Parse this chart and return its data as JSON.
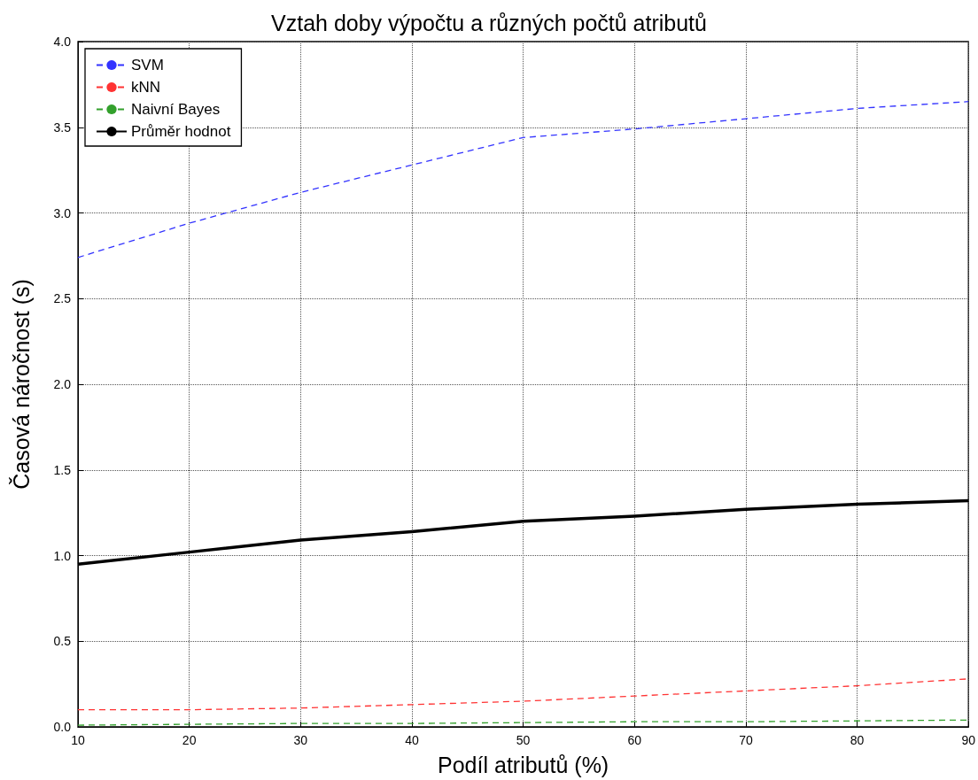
{
  "chart_data": {
    "type": "line",
    "title": "Vztah doby výpočtu a různých počtů atributů",
    "xlabel": "Podíl atributů (%)",
    "ylabel": "Časová náročnost (s)",
    "x": [
      10,
      20,
      30,
      40,
      50,
      60,
      70,
      80,
      90
    ],
    "series": [
      {
        "name": "SVM",
        "color": "#3333ff",
        "line_style": "dashed",
        "values": [
          2.74,
          2.94,
          3.12,
          3.28,
          3.44,
          3.49,
          3.55,
          3.61,
          3.65
        ]
      },
      {
        "name": "kNN",
        "color": "#ff3333",
        "line_style": "dashed",
        "values": [
          0.1,
          0.1,
          0.11,
          0.13,
          0.15,
          0.18,
          0.21,
          0.24,
          0.28
        ]
      },
      {
        "name": "Naivní Bayes",
        "color": "#33a02c",
        "line_style": "dashed",
        "values": [
          0.01,
          0.015,
          0.02,
          0.02,
          0.025,
          0.03,
          0.03,
          0.035,
          0.04
        ]
      },
      {
        "name": "Průměr hodnot",
        "color": "#000000",
        "line_style": "solid",
        "values": [
          0.95,
          1.02,
          1.09,
          1.14,
          1.2,
          1.23,
          1.27,
          1.3,
          1.32
        ]
      }
    ],
    "xlim": [
      10,
      90
    ],
    "xticks": [
      10,
      20,
      30,
      40,
      50,
      60,
      70,
      80,
      90
    ],
    "ylim": [
      0,
      4
    ],
    "yticks": [
      {
        "value": 0,
        "label": "0.0"
      },
      {
        "value": 0.5,
        "label": "0.5"
      },
      {
        "value": 1,
        "label": "1.0"
      },
      {
        "value": 1.5,
        "label": "1.5"
      },
      {
        "value": 2,
        "label": "2.0"
      },
      {
        "value": 2.5,
        "label": "2.5"
      },
      {
        "value": 3,
        "label": "3.0"
      },
      {
        "value": 3.5,
        "label": "3.5"
      },
      {
        "value": 4,
        "label": "4.0"
      }
    ],
    "grid": true,
    "legend": "top left",
    "marker": "none"
  }
}
